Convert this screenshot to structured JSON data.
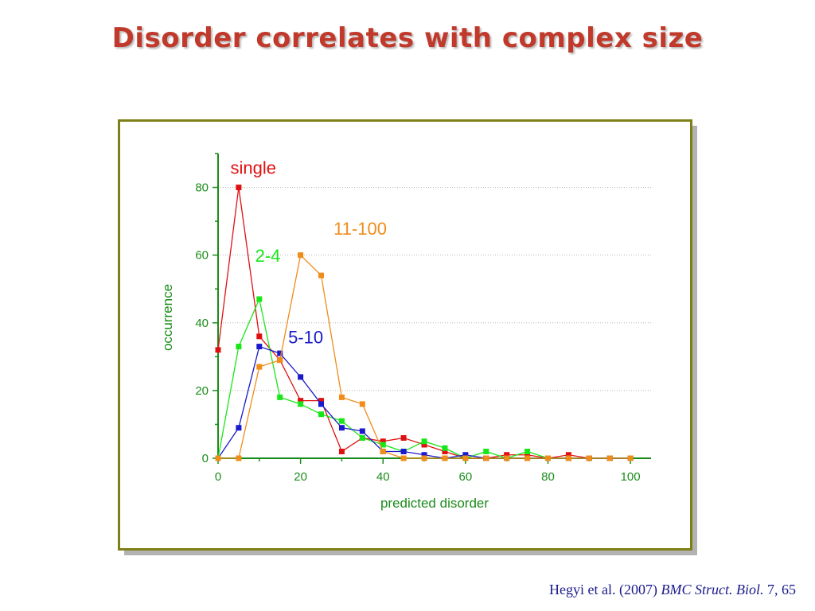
{
  "slide": {
    "title": "Disorder correlates with complex size"
  },
  "citation": {
    "authors": "Hegyi et al. (2007)",
    "journal": "BMC Struct. Biol.",
    "volume": "7, 65"
  },
  "chart_data": {
    "type": "line",
    "xlabel": "predicted disorder",
    "ylabel": "occurrence",
    "xlim": [
      0,
      105
    ],
    "ylim": [
      0,
      90
    ],
    "x_ticks": [
      0,
      20,
      40,
      60,
      80,
      100
    ],
    "y_ticks": [
      0,
      20,
      40,
      60,
      80
    ],
    "grid": "horizontal dotted",
    "series": [
      {
        "name": "single",
        "color": "#e01010",
        "x": [
          0,
          5,
          10,
          15,
          20,
          25,
          30,
          35,
          40,
          45,
          50,
          55,
          60,
          65,
          70,
          75,
          80,
          85,
          90,
          95,
          100
        ],
        "values": [
          32,
          80,
          36,
          29,
          17,
          17,
          2,
          6,
          5,
          6,
          4,
          2,
          0,
          0,
          1,
          1,
          0,
          1,
          0,
          0,
          0
        ]
      },
      {
        "name": "2-4",
        "color": "#19e619",
        "x": [
          0,
          5,
          10,
          15,
          20,
          25,
          30,
          35,
          40,
          45,
          50,
          55,
          60,
          65,
          70,
          75,
          80,
          85,
          90,
          95,
          100
        ],
        "values": [
          0,
          33,
          47,
          18,
          16,
          13,
          11,
          6,
          4,
          2,
          5,
          3,
          0,
          2,
          0,
          2,
          0,
          0,
          0,
          0,
          0
        ]
      },
      {
        "name": "5-10",
        "color": "#1a1acc",
        "x": [
          0,
          5,
          10,
          15,
          20,
          25,
          30,
          35,
          40,
          45,
          50,
          55,
          60,
          65,
          70,
          75,
          80,
          85,
          90,
          95,
          100
        ],
        "values": [
          0,
          9,
          33,
          31,
          24,
          16,
          9,
          8,
          2,
          2,
          1,
          0,
          1,
          0,
          0,
          0,
          0,
          0,
          0,
          0,
          0
        ]
      },
      {
        "name": "11-100",
        "color": "#f08c1a",
        "x": [
          0,
          5,
          10,
          15,
          20,
          25,
          30,
          35,
          40,
          45,
          50,
          55,
          60,
          65,
          70,
          75,
          80,
          85,
          90,
          95,
          100
        ],
        "values": [
          0,
          0,
          27,
          29,
          60,
          54,
          18,
          16,
          2,
          0,
          0,
          0,
          0,
          0,
          0,
          0,
          0,
          0,
          0,
          0,
          0
        ]
      }
    ],
    "series_labels": [
      {
        "text": "single",
        "color": "#e01010",
        "anchor_x": 3,
        "anchor_y": 84
      },
      {
        "text": "11-100",
        "color": "#f08c1a",
        "anchor_x": 28,
        "anchor_y": 66
      },
      {
        "text": "2-4",
        "color": "#19e619",
        "anchor_x": 9,
        "anchor_y": 58
      },
      {
        "text": "5-10",
        "color": "#1a1acc",
        "anchor_x": 17,
        "anchor_y": 34
      }
    ]
  }
}
